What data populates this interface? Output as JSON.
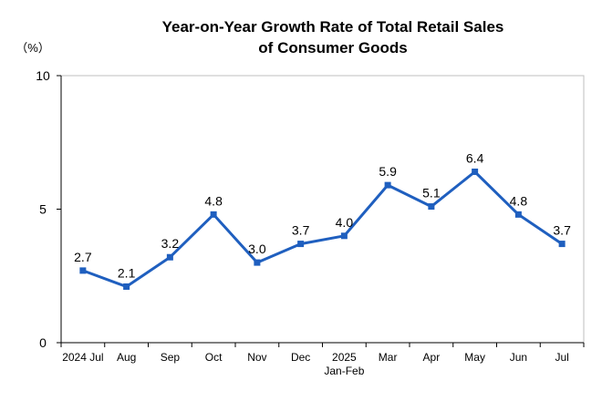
{
  "chart_data": {
    "type": "line",
    "title_lines": [
      "Year-on-Year Growth Rate of Total Retail Sales",
      "of Consumer Goods"
    ],
    "ylabel": "（%）",
    "xlabel": "",
    "ylim": [
      0,
      10
    ],
    "yticks": [
      0,
      5,
      10
    ],
    "grid": false,
    "categories": [
      {
        "line1": "2024 Jul",
        "line2": ""
      },
      {
        "line1": "Aug",
        "line2": ""
      },
      {
        "line1": "Sep",
        "line2": ""
      },
      {
        "line1": "Oct",
        "line2": ""
      },
      {
        "line1": "Nov",
        "line2": ""
      },
      {
        "line1": "Dec",
        "line2": ""
      },
      {
        "line1": "2025",
        "line2": "Jan-Feb"
      },
      {
        "line1": "Mar",
        "line2": ""
      },
      {
        "line1": "Apr",
        "line2": ""
      },
      {
        "line1": "May",
        "line2": ""
      },
      {
        "line1": "Jun",
        "line2": ""
      },
      {
        "line1": "Jul",
        "line2": ""
      }
    ],
    "series": [
      {
        "name": "Year-on-Year Growth Rate",
        "color": "#1f5fbf",
        "values": [
          2.7,
          2.1,
          3.2,
          4.8,
          3.0,
          3.7,
          4.0,
          5.9,
          5.1,
          6.4,
          4.8,
          3.7
        ],
        "labels": [
          "2.7",
          "2.1",
          "3.2",
          "4.8",
          "3.0",
          "3.7",
          "4.0",
          "5.9",
          "5.1",
          "6.4",
          "4.8",
          "3.7"
        ]
      }
    ]
  }
}
